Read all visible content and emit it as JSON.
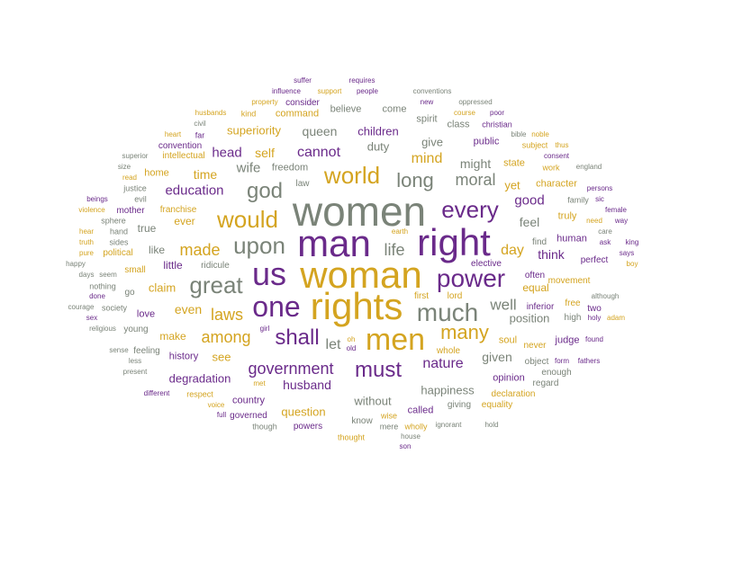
{
  "colors": {
    "gray": "#7a8378",
    "gold": "#d4a420",
    "purple": "#6a2a8a"
  },
  "words": [
    {
      "text": "women",
      "color": "gray"
    },
    {
      "text": "man",
      "color": "purple"
    },
    {
      "text": "right",
      "color": "purple"
    },
    {
      "text": "woman",
      "color": "gold"
    },
    {
      "text": "rights",
      "color": "gold"
    },
    {
      "text": "us",
      "color": "purple"
    },
    {
      "text": "one",
      "color": "purple"
    },
    {
      "text": "men",
      "color": "gold"
    },
    {
      "text": "much",
      "color": "gray"
    },
    {
      "text": "power",
      "color": "purple"
    },
    {
      "text": "upon",
      "color": "gray"
    },
    {
      "text": "great",
      "color": "gray"
    },
    {
      "text": "would",
      "color": "gold"
    },
    {
      "text": "world",
      "color": "gold"
    },
    {
      "text": "every",
      "color": "purple"
    },
    {
      "text": "god",
      "color": "gray"
    },
    {
      "text": "shall",
      "color": "purple"
    },
    {
      "text": "must",
      "color": "purple"
    },
    {
      "text": "long",
      "color": "gray"
    },
    {
      "text": "many",
      "color": "gold"
    },
    {
      "text": "government",
      "color": "purple"
    },
    {
      "text": "made",
      "color": "gold"
    },
    {
      "text": "among",
      "color": "gold"
    },
    {
      "text": "laws",
      "color": "gold"
    },
    {
      "text": "life",
      "color": "gray"
    },
    {
      "text": "moral",
      "color": "gray"
    },
    {
      "text": "cannot",
      "color": "purple"
    },
    {
      "text": "well",
      "color": "gray"
    },
    {
      "text": "let",
      "color": "gray"
    },
    {
      "text": "nature",
      "color": "purple"
    },
    {
      "text": "mind",
      "color": "gold"
    },
    {
      "text": "education",
      "color": "purple"
    },
    {
      "text": "wife",
      "color": "gray"
    },
    {
      "text": "head",
      "color": "purple"
    },
    {
      "text": "self",
      "color": "gold"
    },
    {
      "text": "day",
      "color": "gold"
    },
    {
      "text": "good",
      "color": "purple"
    },
    {
      "text": "feel",
      "color": "gray"
    },
    {
      "text": "might",
      "color": "gray"
    },
    {
      "text": "yet",
      "color": "gold"
    },
    {
      "text": "think",
      "color": "purple"
    },
    {
      "text": "given",
      "color": "gray"
    },
    {
      "text": "position",
      "color": "gray"
    },
    {
      "text": "even",
      "color": "gold"
    },
    {
      "text": "time",
      "color": "gold"
    },
    {
      "text": "husband",
      "color": "purple"
    },
    {
      "text": "children",
      "color": "purple"
    },
    {
      "text": "queen",
      "color": "gray"
    },
    {
      "text": "superiority",
      "color": "gold"
    },
    {
      "text": "duty",
      "color": "gray"
    },
    {
      "text": "give",
      "color": "gray"
    },
    {
      "text": "happiness",
      "color": "gray"
    },
    {
      "text": "claim",
      "color": "gold"
    },
    {
      "text": "see",
      "color": "gold"
    },
    {
      "text": "make",
      "color": "gold"
    },
    {
      "text": "equal",
      "color": "gold"
    },
    {
      "text": "degradation",
      "color": "purple"
    },
    {
      "text": "question",
      "color": "gold"
    },
    {
      "text": "without",
      "color": "gray"
    },
    {
      "text": "little",
      "color": "purple"
    },
    {
      "text": "like",
      "color": "gray"
    },
    {
      "text": "ever",
      "color": "gold"
    },
    {
      "text": "true",
      "color": "gray"
    },
    {
      "text": "love",
      "color": "purple"
    },
    {
      "text": "history",
      "color": "purple"
    },
    {
      "text": "soul",
      "color": "gold"
    },
    {
      "text": "character",
      "color": "gold"
    },
    {
      "text": "state",
      "color": "gold"
    },
    {
      "text": "public",
      "color": "purple"
    },
    {
      "text": "truly",
      "color": "gold"
    },
    {
      "text": "human",
      "color": "purple"
    },
    {
      "text": "judge",
      "color": "purple"
    },
    {
      "text": "opinion",
      "color": "purple"
    },
    {
      "text": "called",
      "color": "purple"
    },
    {
      "text": "country",
      "color": "purple"
    },
    {
      "text": "home",
      "color": "gold"
    },
    {
      "text": "freedom",
      "color": "gray"
    },
    {
      "text": "command",
      "color": "gold"
    },
    {
      "text": "believe",
      "color": "gray"
    },
    {
      "text": "come",
      "color": "gray"
    },
    {
      "text": "spirit",
      "color": "gray"
    },
    {
      "text": "class",
      "color": "gray"
    },
    {
      "text": "intellectual",
      "color": "gold"
    },
    {
      "text": "convention",
      "color": "purple"
    },
    {
      "text": "franchise",
      "color": "gold"
    },
    {
      "text": "mother",
      "color": "purple"
    },
    {
      "text": "small",
      "color": "gold"
    },
    {
      "text": "political",
      "color": "gold"
    },
    {
      "text": "ridicule",
      "color": "gray"
    },
    {
      "text": "elective",
      "color": "purple"
    },
    {
      "text": "first",
      "color": "gold"
    },
    {
      "text": "lord",
      "color": "gold"
    },
    {
      "text": "movement",
      "color": "gold"
    },
    {
      "text": "perfect",
      "color": "purple"
    },
    {
      "text": "inferior",
      "color": "purple"
    },
    {
      "text": "free",
      "color": "gold"
    },
    {
      "text": "two",
      "color": "purple"
    },
    {
      "text": "high",
      "color": "gray"
    },
    {
      "text": "find",
      "color": "gray"
    },
    {
      "text": "often",
      "color": "purple"
    },
    {
      "text": "never",
      "color": "gold"
    },
    {
      "text": "object",
      "color": "gray"
    },
    {
      "text": "regard",
      "color": "gray"
    },
    {
      "text": "enough",
      "color": "gray"
    },
    {
      "text": "declaration",
      "color": "gold"
    },
    {
      "text": "equality",
      "color": "gold"
    },
    {
      "text": "giving",
      "color": "gray"
    },
    {
      "text": "whole",
      "color": "gold"
    },
    {
      "text": "know",
      "color": "gray"
    },
    {
      "text": "powers",
      "color": "purple"
    },
    {
      "text": "governed",
      "color": "purple"
    },
    {
      "text": "though",
      "color": "gray"
    },
    {
      "text": "thought",
      "color": "gold"
    },
    {
      "text": "wise",
      "color": "gold"
    },
    {
      "text": "mere",
      "color": "gray"
    },
    {
      "text": "wholly",
      "color": "gold"
    },
    {
      "text": "ignorant",
      "color": "gray"
    },
    {
      "text": "hold",
      "color": "gray"
    },
    {
      "text": "house",
      "color": "gray"
    },
    {
      "text": "son",
      "color": "purple"
    },
    {
      "text": "respect",
      "color": "gold"
    },
    {
      "text": "different",
      "color": "purple"
    },
    {
      "text": "present",
      "color": "gray"
    },
    {
      "text": "less",
      "color": "gray"
    },
    {
      "text": "sense",
      "color": "gray"
    },
    {
      "text": "feeling",
      "color": "gray"
    },
    {
      "text": "young",
      "color": "gray"
    },
    {
      "text": "society",
      "color": "gray"
    },
    {
      "text": "go",
      "color": "gray"
    },
    {
      "text": "nothing",
      "color": "gray"
    },
    {
      "text": "done",
      "color": "purple"
    },
    {
      "text": "sex",
      "color": "purple"
    },
    {
      "text": "religious",
      "color": "gray"
    },
    {
      "text": "courage",
      "color": "gray"
    },
    {
      "text": "days",
      "color": "gray"
    },
    {
      "text": "seem",
      "color": "gray"
    },
    {
      "text": "happy",
      "color": "gray"
    },
    {
      "text": "pure",
      "color": "gold"
    },
    {
      "text": "truth",
      "color": "gold"
    },
    {
      "text": "hear",
      "color": "gold"
    },
    {
      "text": "violence",
      "color": "gold"
    },
    {
      "text": "beings",
      "color": "purple"
    },
    {
      "text": "read",
      "color": "gold"
    },
    {
      "text": "size",
      "color": "gray"
    },
    {
      "text": "superior",
      "color": "gray"
    },
    {
      "text": "heart",
      "color": "gold"
    },
    {
      "text": "civil",
      "color": "gray"
    },
    {
      "text": "far",
      "color": "purple"
    },
    {
      "text": "husbands",
      "color": "gold"
    },
    {
      "text": "kind",
      "color": "gold"
    },
    {
      "text": "property",
      "color": "gold"
    },
    {
      "text": "consider",
      "color": "purple"
    },
    {
      "text": "influence",
      "color": "purple"
    },
    {
      "text": "support",
      "color": "gold"
    },
    {
      "text": "people",
      "color": "purple"
    },
    {
      "text": "suffer",
      "color": "purple"
    },
    {
      "text": "requires",
      "color": "purple"
    },
    {
      "text": "conventions",
      "color": "gray"
    },
    {
      "text": "new",
      "color": "purple"
    },
    {
      "text": "oppressed",
      "color": "gray"
    },
    {
      "text": "course",
      "color": "gold"
    },
    {
      "text": "poor",
      "color": "purple"
    },
    {
      "text": "christian",
      "color": "purple"
    },
    {
      "text": "bible",
      "color": "gray"
    },
    {
      "text": "noble",
      "color": "gold"
    },
    {
      "text": "subject",
      "color": "gold"
    },
    {
      "text": "thus",
      "color": "gold"
    },
    {
      "text": "consent",
      "color": "purple"
    },
    {
      "text": "work",
      "color": "gold"
    },
    {
      "text": "england",
      "color": "gray"
    },
    {
      "text": "family",
      "color": "gray"
    },
    {
      "text": "sic",
      "color": "purple"
    },
    {
      "text": "persons",
      "color": "purple"
    },
    {
      "text": "female",
      "color": "purple"
    },
    {
      "text": "need",
      "color": "gold"
    },
    {
      "text": "way",
      "color": "purple"
    },
    {
      "text": "care",
      "color": "gray"
    },
    {
      "text": "ask",
      "color": "purple"
    },
    {
      "text": "king",
      "color": "purple"
    },
    {
      "text": "says",
      "color": "purple"
    },
    {
      "text": "boy",
      "color": "gold"
    },
    {
      "text": "although",
      "color": "gray"
    },
    {
      "text": "holy",
      "color": "purple"
    },
    {
      "text": "adam",
      "color": "gold"
    },
    {
      "text": "found",
      "color": "purple"
    },
    {
      "text": "form",
      "color": "purple"
    },
    {
      "text": "fathers",
      "color": "purple"
    },
    {
      "text": "earth",
      "color": "gold"
    },
    {
      "text": "girl",
      "color": "purple"
    },
    {
      "text": "oh",
      "color": "gold"
    },
    {
      "text": "old",
      "color": "purple"
    },
    {
      "text": "law",
      "color": "gray"
    },
    {
      "text": "justice",
      "color": "gray"
    },
    {
      "text": "evil",
      "color": "gray"
    },
    {
      "text": "sphere",
      "color": "gray"
    },
    {
      "text": "hand",
      "color": "gray"
    },
    {
      "text": "sides",
      "color": "gray"
    },
    {
      "text": "voice",
      "color": "gold"
    },
    {
      "text": "full",
      "color": "purple"
    },
    {
      "text": "met",
      "color": "gold"
    }
  ]
}
